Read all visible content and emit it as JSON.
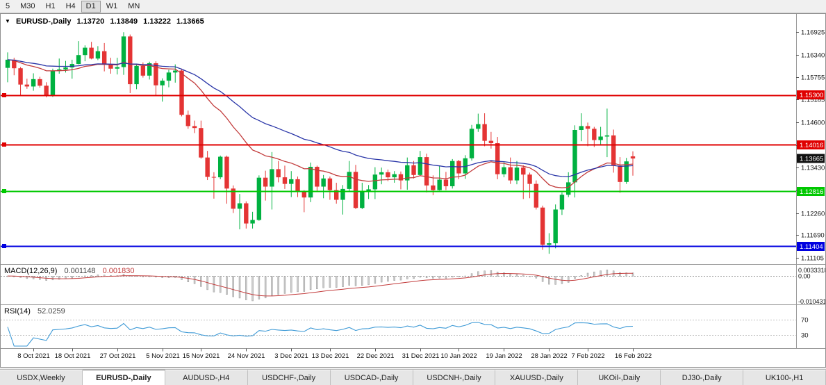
{
  "toolbar": {
    "timeframes": [
      "5",
      "M30",
      "H1",
      "H4",
      "D1",
      "W1",
      "MN"
    ],
    "active": "D1"
  },
  "chart_header": {
    "collapse_icon": "▼",
    "symbol": "EURUSD-,Daily",
    "open": "1.13720",
    "high": "1.13849",
    "low": "1.13222",
    "close": "1.13665"
  },
  "indicator_headers": {
    "macd": {
      "label": "MACD(12,26,9)",
      "main": "0.001148",
      "signal": "0.001830"
    },
    "rsi": {
      "label": "RSI(14)",
      "value": "52.0259"
    }
  },
  "tabs": {
    "items": [
      "USDX,Weekly",
      "EURUSD-,Daily",
      "AUDUSD-,H4",
      "USDCHF-,Daily",
      "USDCAD-,Daily",
      "USDCNH-,Daily",
      "XAUUSD-,Daily",
      "UKOil-,Daily",
      "DJ30-,Daily",
      "UK100-,H1"
    ],
    "active_index": 1
  },
  "colors": {
    "candle_up": "#00b140",
    "candle_down": "#e43434",
    "ma_fast": "#c23b3b",
    "ma_slow": "#2a36a8",
    "macd_hist": "#cccccc",
    "macd_hist_border": "#9a9a9a",
    "macd_signal": "#c23b3b",
    "rsi_line": "#3e9ad6",
    "separator": "#9a9a9a",
    "axis_text": "#111111"
  },
  "chart_data": {
    "type": "candlestick",
    "title": "EURUSD-,Daily",
    "y_axis": {
      "top_price": 1.16925,
      "bottom_price": 1.11105,
      "tick_labels": [
        "1.16925",
        "1.16340",
        "1.15755",
        "1.15185",
        "1.14600",
        "1.14015",
        "1.13430",
        "1.12845",
        "1.12260",
        "1.11690",
        "1.11105"
      ]
    },
    "x_labels": [
      "8 Oct 2021",
      "18 Oct 2021",
      "27 Oct 2021",
      "5 Nov 2021",
      "15 Nov 2021",
      "24 Nov 2021",
      "3 Dec 2021",
      "13 Dec 2021",
      "22 Dec 2021",
      "31 Dec 2021",
      "10 Jan 2022",
      "19 Jan 2022",
      "28 Jan 2022",
      "7 Feb 2022",
      "16 Feb 2022"
    ],
    "x_label_indices": [
      4,
      10,
      17,
      24,
      30,
      37,
      44,
      50,
      57,
      64,
      70,
      77,
      84,
      90,
      97
    ],
    "hlines": [
      {
        "price": 1.153,
        "label": "1.15300",
        "color": "#e00000"
      },
      {
        "price": 1.14016,
        "label": "1.14016",
        "color": "#e00000"
      },
      {
        "price": 1.12816,
        "label": "1.12816",
        "color": "#00c800"
      },
      {
        "price": 1.11404,
        "label": "1.11404",
        "color": "#0000e0"
      }
    ],
    "current_price": {
      "value": 1.13665,
      "label": "1.13665",
      "box_color": "#111111"
    },
    "overlays": [
      {
        "name": "ma-fast",
        "type": "ema",
        "period": 20,
        "color": "#c23b3b"
      },
      {
        "name": "ma-slow",
        "type": "ema",
        "period": 40,
        "color": "#2a36a8"
      }
    ],
    "macd": {
      "params": [
        12,
        26,
        9
      ],
      "current_main": 0.001148,
      "current_signal": 0.00183,
      "max": 0.0033318,
      "min": -0.0104318,
      "axis_labels": [
        "0.0033318",
        "0.00",
        "-0.0104318"
      ]
    },
    "rsi": {
      "params": [
        14
      ],
      "current": 52.0259,
      "levels": [
        70,
        30
      ],
      "axis_labels": [
        "70",
        "30"
      ]
    },
    "ohlc": [
      [
        1.16,
        1.164,
        1.1563,
        1.1621
      ],
      [
        1.1621,
        1.1626,
        1.1581,
        1.1599
      ],
      [
        1.1599,
        1.1602,
        1.1529,
        1.1557
      ],
      [
        1.1557,
        1.1572,
        1.1546,
        1.1552
      ],
      [
        1.1552,
        1.1586,
        1.1541,
        1.1571
      ],
      [
        1.1571,
        1.1577,
        1.1549,
        1.1554
      ],
      [
        1.1554,
        1.1563,
        1.1524,
        1.153
      ],
      [
        1.153,
        1.1598,
        1.1525,
        1.1592
      ],
      [
        1.1592,
        1.1624,
        1.1585,
        1.1596
      ],
      [
        1.1596,
        1.1618,
        1.1588,
        1.1601
      ],
      [
        1.1601,
        1.1621,
        1.1572,
        1.161
      ],
      [
        1.161,
        1.1669,
        1.1609,
        1.1633
      ],
      [
        1.1633,
        1.1658,
        1.1617,
        1.1652
      ],
      [
        1.1652,
        1.1667,
        1.1622,
        1.1624
      ],
      [
        1.1624,
        1.1656,
        1.162,
        1.1643
      ],
      [
        1.1643,
        1.1664,
        1.1591,
        1.1608
      ],
      [
        1.1608,
        1.1626,
        1.1585,
        1.1598
      ],
      [
        1.1598,
        1.1626,
        1.1583,
        1.1602
      ],
      [
        1.1602,
        1.1692,
        1.1582,
        1.1681
      ],
      [
        1.1681,
        1.1686,
        1.1535,
        1.1558
      ],
      [
        1.1558,
        1.1609,
        1.1545,
        1.1605
      ],
      [
        1.1605,
        1.1614,
        1.1575,
        1.158
      ],
      [
        1.158,
        1.1616,
        1.157,
        1.1612
      ],
      [
        1.1612,
        1.1617,
        1.1527,
        1.1555
      ],
      [
        1.1555,
        1.1573,
        1.1513,
        1.1567
      ],
      [
        1.1567,
        1.1595,
        1.155,
        1.1588
      ],
      [
        1.1588,
        1.1609,
        1.1562,
        1.1593
      ],
      [
        1.1593,
        1.1598,
        1.1475,
        1.1479
      ],
      [
        1.1479,
        1.149,
        1.1443,
        1.145
      ],
      [
        1.145,
        1.1464,
        1.1432,
        1.1445
      ],
      [
        1.1445,
        1.1464,
        1.1366,
        1.1369
      ],
      [
        1.1369,
        1.1386,
        1.1311,
        1.1319
      ],
      [
        1.1319,
        1.1331,
        1.1263,
        1.1318
      ],
      [
        1.1318,
        1.1374,
        1.1313,
        1.1371
      ],
      [
        1.1371,
        1.1374,
        1.125,
        1.1289
      ],
      [
        1.1289,
        1.1297,
        1.1226,
        1.1237
      ],
      [
        1.1237,
        1.1275,
        1.1184,
        1.1251
      ],
      [
        1.1251,
        1.1256,
        1.1186,
        1.1199
      ],
      [
        1.1199,
        1.1229,
        1.1186,
        1.1208
      ],
      [
        1.1208,
        1.1323,
        1.1206,
        1.1317
      ],
      [
        1.1317,
        1.1335,
        1.1258,
        1.1294
      ],
      [
        1.1294,
        1.1383,
        1.1235,
        1.1339
      ],
      [
        1.1339,
        1.136,
        1.1305,
        1.1318
      ],
      [
        1.1318,
        1.1348,
        1.1288,
        1.1301
      ],
      [
        1.1301,
        1.1334,
        1.1267,
        1.1313
      ],
      [
        1.1313,
        1.132,
        1.1267,
        1.1283
      ],
      [
        1.1283,
        1.1285,
        1.1228,
        1.1266
      ],
      [
        1.1266,
        1.1356,
        1.1254,
        1.1345
      ],
      [
        1.1345,
        1.1348,
        1.128,
        1.1294
      ],
      [
        1.1294,
        1.1324,
        1.1264,
        1.1315
      ],
      [
        1.1315,
        1.132,
        1.126,
        1.1285
      ],
      [
        1.1285,
        1.1304,
        1.125,
        1.126
      ],
      [
        1.126,
        1.1298,
        1.1222,
        1.1288
      ],
      [
        1.1288,
        1.136,
        1.128,
        1.1332
      ],
      [
        1.1332,
        1.135,
        1.1236,
        1.1239
      ],
      [
        1.1239,
        1.1304,
        1.1236,
        1.128
      ],
      [
        1.128,
        1.1298,
        1.1262,
        1.1287
      ],
      [
        1.1287,
        1.1344,
        1.1262,
        1.1325
      ],
      [
        1.1325,
        1.1343,
        1.13,
        1.1331
      ],
      [
        1.1331,
        1.1338,
        1.1308,
        1.1318
      ],
      [
        1.1318,
        1.1334,
        1.1304,
        1.1326
      ],
      [
        1.1326,
        1.1333,
        1.1287,
        1.131
      ],
      [
        1.131,
        1.1369,
        1.1286,
        1.1349
      ],
      [
        1.1349,
        1.136,
        1.1315,
        1.1324
      ],
      [
        1.1324,
        1.1386,
        1.1321,
        1.137
      ],
      [
        1.137,
        1.1379,
        1.1279,
        1.1297
      ],
      [
        1.1297,
        1.1323,
        1.1272,
        1.1285
      ],
      [
        1.1285,
        1.1347,
        1.1284,
        1.1312
      ],
      [
        1.1312,
        1.1332,
        1.1285,
        1.1295
      ],
      [
        1.1295,
        1.1365,
        1.1289,
        1.136
      ],
      [
        1.136,
        1.1363,
        1.1313,
        1.1328
      ],
      [
        1.1328,
        1.1375,
        1.1314,
        1.1367
      ],
      [
        1.1367,
        1.1453,
        1.1361,
        1.1443
      ],
      [
        1.1443,
        1.1482,
        1.1435,
        1.1455
      ],
      [
        1.1455,
        1.1483,
        1.1398,
        1.1412
      ],
      [
        1.1412,
        1.1435,
        1.1392,
        1.1406
      ],
      [
        1.1406,
        1.1422,
        1.1313,
        1.1326
      ],
      [
        1.1326,
        1.1357,
        1.1318,
        1.1344
      ],
      [
        1.1344,
        1.1369,
        1.1301,
        1.131
      ],
      [
        1.131,
        1.136,
        1.13,
        1.1343
      ],
      [
        1.1343,
        1.1349,
        1.1262,
        1.1325
      ],
      [
        1.1325,
        1.133,
        1.1264,
        1.1301
      ],
      [
        1.1301,
        1.131,
        1.1235,
        1.124
      ],
      [
        1.124,
        1.1245,
        1.1131,
        1.1144
      ],
      [
        1.1144,
        1.1174,
        1.1121,
        1.1148
      ],
      [
        1.1148,
        1.1248,
        1.1135,
        1.1235
      ],
      [
        1.1235,
        1.1279,
        1.1221,
        1.1273
      ],
      [
        1.1273,
        1.1331,
        1.1267,
        1.1305
      ],
      [
        1.1305,
        1.1452,
        1.1266,
        1.144
      ],
      [
        1.144,
        1.1483,
        1.1411,
        1.145
      ],
      [
        1.145,
        1.1459,
        1.1398,
        1.1443
      ],
      [
        1.1443,
        1.1448,
        1.1396,
        1.1414
      ],
      [
        1.1414,
        1.1448,
        1.1403,
        1.1423
      ],
      [
        1.1423,
        1.1495,
        1.137,
        1.1426
      ],
      [
        1.1426,
        1.1441,
        1.133,
        1.1348
      ],
      [
        1.1348,
        1.137,
        1.1278,
        1.1306
      ],
      [
        1.1306,
        1.1368,
        1.1301,
        1.1359
      ],
      [
        1.1372,
        1.13849,
        1.13222,
        1.13665
      ]
    ]
  }
}
